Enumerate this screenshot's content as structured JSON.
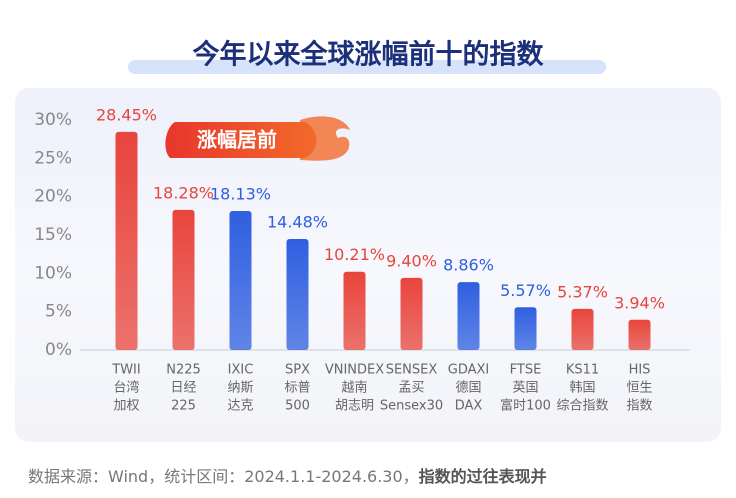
{
  "chart_data": {
    "type": "bar",
    "title": "今年以来全球涨幅前十的指数",
    "badge": "涨幅居前",
    "categories": [
      [
        "TWII",
        "台湾",
        "加权"
      ],
      [
        "N225",
        "日经",
        "225"
      ],
      [
        "IXIC",
        "纳斯",
        "达克"
      ],
      [
        "SPX",
        "标普",
        "500"
      ],
      [
        "VNINDEX",
        "越南",
        "胡志明"
      ],
      [
        "SENSEX",
        "孟买",
        "Sensex30"
      ],
      [
        "GDAXI",
        "德国",
        "DAX"
      ],
      [
        "FTSE",
        "英国",
        "富时100"
      ],
      [
        "KS11",
        "韩国",
        "综合指数"
      ],
      [
        "HIS",
        "恒生",
        "指数"
      ]
    ],
    "values": [
      28.45,
      18.28,
      18.13,
      14.48,
      10.21,
      9.4,
      8.86,
      5.57,
      5.37,
      3.94
    ],
    "value_labels": [
      "28.45%",
      "18.28%",
      "18.13%",
      "14.48%",
      "10.21%",
      "9.40%",
      "8.86%",
      "5.57%",
      "5.37%",
      "3.94%"
    ],
    "colors": [
      "#e8453c",
      "#e8453c",
      "#2f5fe0",
      "#2f5fe0",
      "#e8453c",
      "#e8453c",
      "#2f5fe0",
      "#2f5fe0",
      "#e8453c",
      "#e8453c"
    ],
    "ylim": [
      0,
      30
    ],
    "yticks": [
      {
        "value": 0,
        "label": "0%"
      },
      {
        "value": 5,
        "label": "5%"
      },
      {
        "value": 10,
        "label": "10%"
      },
      {
        "value": 15,
        "label": "15%"
      },
      {
        "value": 20,
        "label": "20%"
      },
      {
        "value": 25,
        "label": "25%"
      },
      {
        "value": 30,
        "label": "30%"
      }
    ],
    "source": "数据来源：Wind，统计区间：2024.1.1-2024.6.30，",
    "source_bold": "指数的过往表现并"
  }
}
